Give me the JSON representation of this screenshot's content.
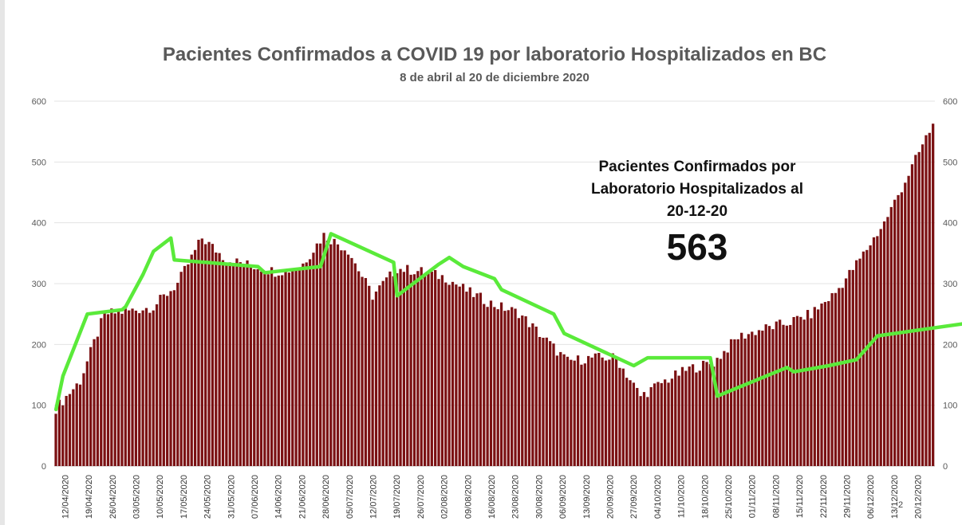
{
  "chart_data": {
    "type": "bar",
    "title": "Pacientes Confirmados a COVID 19 por laboratorio Hospitalizados en BC",
    "subtitle": "8 de abril al 20 de diciembre 2020",
    "ylim": [
      0,
      600
    ],
    "yticks": [
      0,
      100,
      200,
      300,
      400,
      500,
      600
    ],
    "right_axis_ticks": [
      0,
      100,
      200,
      300,
      400,
      500,
      600
    ],
    "grid": true,
    "bar_color": "#7b1113",
    "line_color": "#5aea3a",
    "x_tick_labels": [
      "12/04/2020",
      "19/04/2020",
      "26/04/2020",
      "03/05/2020",
      "10/05/2020",
      "17/05/2020",
      "24/05/2020",
      "31/05/2020",
      "07/06/2020",
      "14/06/2020",
      "21/06/2020",
      "28/06/2020",
      "05/07/2020",
      "12/07/2020",
      "19/07/2020",
      "26/07/2020",
      "02/08/2020",
      "09/08/2020",
      "16/08/2020",
      "23/08/2020",
      "30/08/2020",
      "06/09/2020",
      "13/09/2020",
      "20/09/2020",
      "27/09/2020",
      "04/10/2020",
      "11/10/2020",
      "18/10/2020",
      "25/10/2020",
      "01/11/2020",
      "08/11/2020",
      "15/11/2020",
      "22/11/2020",
      "29/11/2020",
      "06/12/2020",
      "13/12/2020",
      "20/12/2020"
    ],
    "weekly_values": [
      95,
      140,
      250,
      255,
      262,
      300,
      375,
      340,
      330,
      320,
      325,
      380,
      355,
      280,
      325,
      320,
      310,
      285,
      265,
      252,
      212,
      172,
      178,
      178,
      115,
      140,
      160,
      170,
      212,
      225,
      235,
      250,
      285,
      340,
      400,
      480,
      563
    ],
    "trend_line": [
      [
        0,
        93
      ],
      [
        2,
        148
      ],
      [
        9,
        250
      ],
      [
        19,
        257
      ],
      [
        20,
        262
      ],
      [
        25,
        315
      ],
      [
        28,
        353
      ],
      [
        33,
        375
      ],
      [
        34,
        339
      ],
      [
        58,
        328
      ],
      [
        60,
        318
      ],
      [
        76,
        328
      ],
      [
        79,
        382
      ],
      [
        97,
        335
      ],
      [
        98,
        280
      ],
      [
        110,
        332
      ],
      [
        113,
        343
      ],
      [
        117,
        328
      ],
      [
        126,
        308
      ],
      [
        128,
        290
      ],
      [
        143,
        250
      ],
      [
        146,
        218
      ],
      [
        166,
        165
      ],
      [
        170,
        178
      ],
      [
        188,
        178
      ],
      [
        190,
        115
      ],
      [
        210,
        162
      ],
      [
        212,
        155
      ],
      [
        222,
        165
      ],
      [
        230,
        175
      ],
      [
        236,
        214
      ],
      [
        262,
        235
      ],
      [
        264,
        226
      ],
      [
        288,
        281
      ],
      [
        308,
        385
      ],
      [
        312,
        402
      ],
      [
        315,
        420
      ],
      [
        332,
        526
      ],
      [
        340,
        563
      ]
    ]
  },
  "annotation": {
    "label_lines": [
      "Pacientes Confirmados por",
      "Laboratorio Hospitalizados al",
      "20-12-20"
    ],
    "value": "563"
  },
  "page_number": "2"
}
